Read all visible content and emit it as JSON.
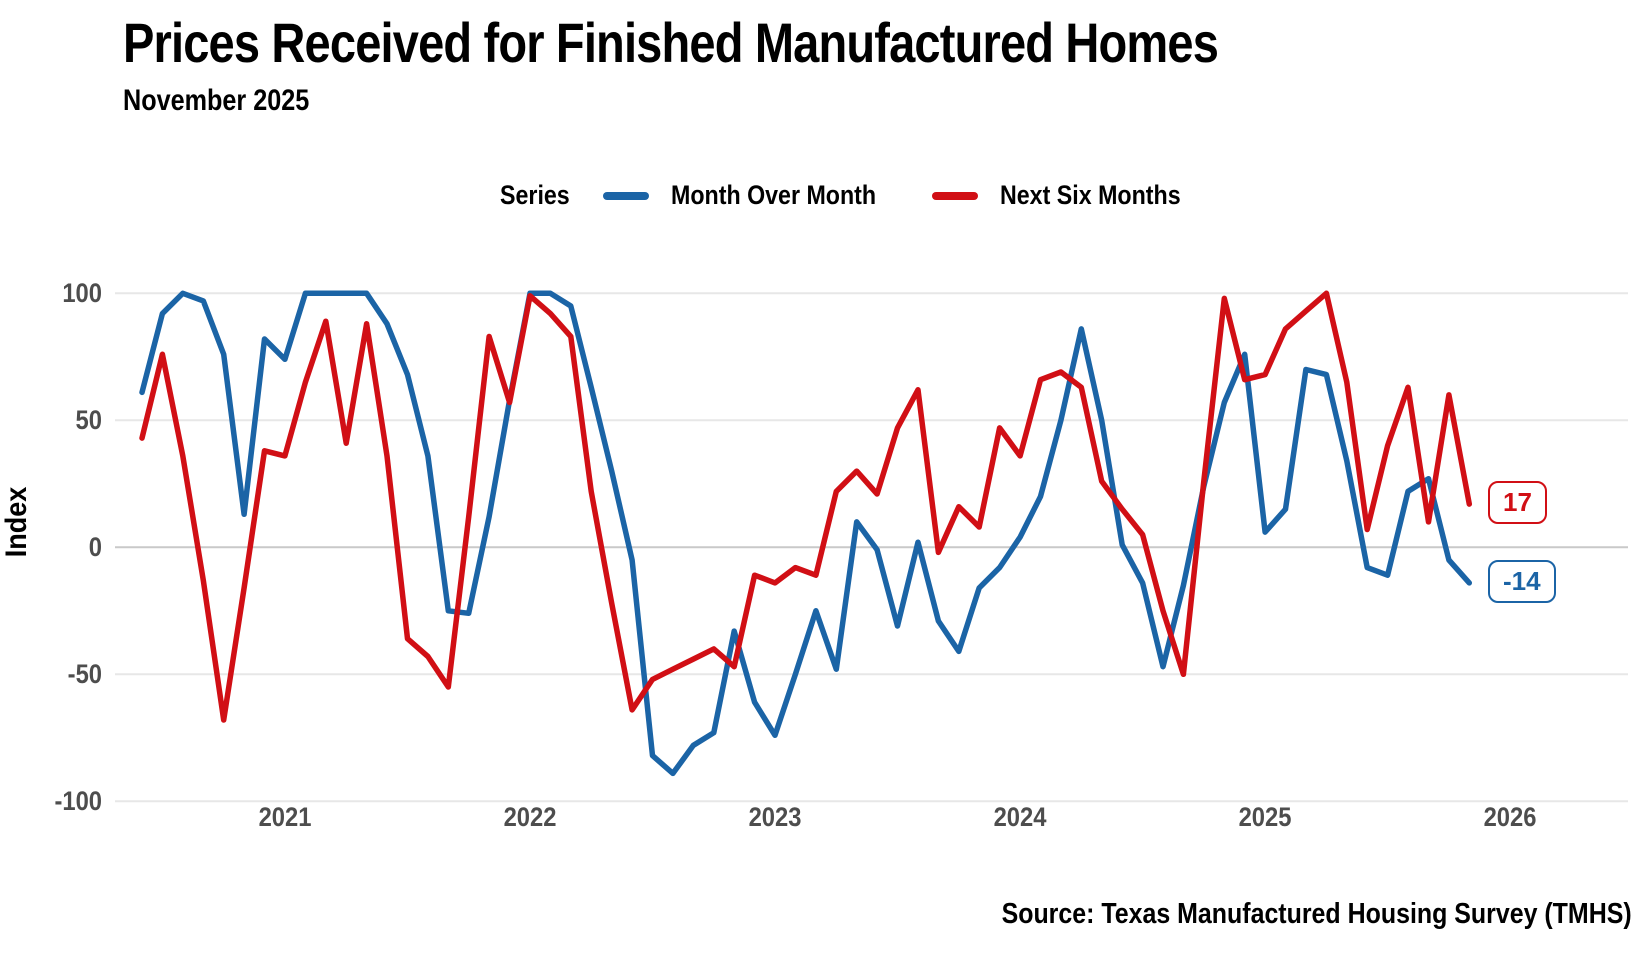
{
  "title": "Prices Received for Finished Manufactured Homes",
  "subtitle": "November 2025",
  "legend": {
    "label": "Series",
    "series": [
      {
        "name": "Month Over Month",
        "color": "#1b64a6"
      },
      {
        "name": "Next Six Months",
        "color": "#d10f15"
      }
    ]
  },
  "y_axis": {
    "label": "Index",
    "ticks": [
      "100",
      "50",
      "0",
      "-50",
      "-100"
    ]
  },
  "x_axis": {
    "ticks": [
      "2021",
      "2022",
      "2023",
      "2024",
      "2025",
      "2026"
    ]
  },
  "source": "Source: Texas Manufactured Housing Survey (TMHS)",
  "chart_data": {
    "type": "line",
    "title": "Prices Received for Finished Manufactured Homes",
    "subtitle": "November 2025",
    "xlabel": "",
    "ylabel": "Index",
    "ylim": [
      -100,
      100
    ],
    "grid": "horizontal",
    "legend_position": "top-center",
    "frequency": "monthly",
    "x_start": "2020-06",
    "x_end": "2025-11",
    "x_tick_labels": [
      "2021",
      "2022",
      "2023",
      "2024",
      "2025",
      "2026"
    ],
    "x_tick_month_index": [
      7,
      19,
      31,
      43,
      55,
      67
    ],
    "y_gridlines": [
      100,
      50,
      0,
      -50,
      -100
    ],
    "series": [
      {
        "name": "Month Over Month",
        "color": "#1b64a6",
        "end_label": "-14",
        "values": [
          61,
          92,
          100,
          97,
          76,
          13,
          82,
          74,
          100,
          100,
          100,
          100,
          88,
          68,
          36,
          -25,
          -26,
          12,
          58,
          100,
          100,
          95,
          63,
          30,
          -5,
          -82,
          -89,
          -78,
          -73,
          -33,
          -61,
          -74,
          -50,
          -25,
          -48,
          10,
          -1,
          -31,
          2,
          -29,
          -41,
          -16,
          -8,
          4,
          20,
          50,
          86,
          50,
          1,
          -14,
          -47,
          -15,
          24,
          57,
          76,
          6,
          15,
          70,
          68,
          34,
          -8,
          -11,
          22,
          27,
          -5,
          -14
        ]
      },
      {
        "name": "Next Six Months",
        "color": "#d10f15",
        "end_label": "17",
        "values": [
          43,
          76,
          36,
          -13,
          -68,
          -16,
          38,
          36,
          65,
          89,
          41,
          88,
          36,
          -36,
          -43,
          -55,
          12,
          83,
          57,
          99,
          92,
          83,
          22,
          -22,
          -64,
          -52,
          -48,
          -44,
          -40,
          -47,
          -11,
          -14,
          -8,
          -11,
          22,
          30,
          21,
          47,
          62,
          -2,
          16,
          8,
          47,
          36,
          66,
          69,
          63,
          26,
          15,
          5,
          -25,
          -50,
          26,
          98,
          66,
          68,
          86,
          93,
          100,
          65,
          7,
          40,
          63,
          10,
          60,
          17
        ]
      }
    ]
  }
}
